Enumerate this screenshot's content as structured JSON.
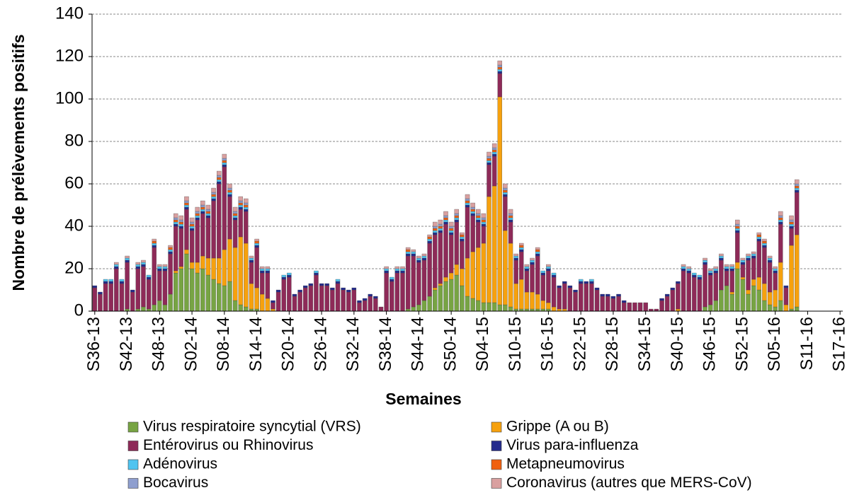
{
  "chart_data": {
    "type": "stacked-bar",
    "ylabel": "Nombre de prélèvements positifs",
    "xlabel": "Semaines",
    "categories": [
      "S36-13",
      null,
      null,
      null,
      null,
      null,
      "S42-13",
      null,
      null,
      null,
      null,
      null,
      "S48-13",
      null,
      null,
      null,
      null,
      null,
      "S02-14",
      null,
      null,
      null,
      null,
      null,
      "S08-14",
      null,
      null,
      null,
      null,
      null,
      "S14-14",
      null,
      null,
      null,
      null,
      null,
      "S20-14",
      null,
      null,
      null,
      null,
      null,
      "S26-14",
      null,
      null,
      null,
      null,
      null,
      "S32-14",
      null,
      null,
      null,
      null,
      null,
      "S38-14",
      null,
      null,
      null,
      null,
      null,
      "S44-14",
      null,
      null,
      null,
      null,
      null,
      "S50-14",
      null,
      null,
      null,
      null,
      null,
      "S04-15",
      null,
      null,
      null,
      null,
      null,
      "S10-15",
      null,
      null,
      null,
      null,
      null,
      "S16-15",
      null,
      null,
      null,
      null,
      null,
      "S22-15",
      null,
      null,
      null,
      null,
      null,
      "S28-15",
      null,
      null,
      null,
      null,
      null,
      "S34-15",
      null,
      null,
      null,
      null,
      null,
      "S40-15",
      null,
      null,
      null,
      null,
      null,
      "S46-15",
      null,
      null,
      null,
      null,
      null,
      "S52-15",
      null,
      null,
      null,
      null,
      null,
      "S05-16",
      null,
      null,
      null,
      null,
      null,
      "S11-16",
      null,
      null,
      null,
      null,
      null,
      "S17-16"
    ],
    "ylim": [
      0,
      140
    ],
    "yticks": [
      0,
      20,
      40,
      60,
      80,
      100,
      120,
      140
    ],
    "grid": true,
    "series": [
      {
        "name": "Virus respiratoire syncytial (VRS)",
        "color": "#77a443",
        "values": [
          0,
          0,
          0,
          0,
          0,
          0,
          1,
          0,
          1,
          2,
          1,
          3,
          5,
          3,
          8,
          18,
          20,
          27,
          20,
          18,
          20,
          17,
          15,
          13,
          12,
          14,
          5,
          3,
          2,
          1,
          1,
          0,
          0,
          0,
          0,
          0,
          0,
          0,
          0,
          0,
          0,
          0,
          0,
          0,
          0,
          0,
          0,
          0,
          0,
          0,
          0,
          0,
          0,
          0,
          0,
          0,
          0,
          0,
          1,
          2,
          3,
          5,
          7,
          10,
          12,
          14,
          15,
          17,
          12,
          7,
          6,
          5,
          4,
          4,
          4,
          3,
          3,
          2,
          1,
          1,
          1,
          1,
          1,
          1,
          1,
          0,
          0,
          0,
          0,
          0,
          0,
          0,
          0,
          0,
          0,
          0,
          0,
          0,
          0,
          0,
          0,
          0,
          0,
          0,
          0,
          0,
          0,
          0,
          0,
          0,
          0,
          0,
          0,
          2,
          3,
          5,
          10,
          12,
          8,
          20,
          15,
          8,
          12,
          10,
          5,
          3,
          2,
          5,
          0,
          1,
          2,
          null,
          null,
          null,
          null,
          null,
          null,
          null,
          null
        ]
      },
      {
        "name": "Grippe (A ou B)",
        "color": "#f6a10e",
        "values": [
          0,
          0,
          0,
          0,
          0,
          0,
          0,
          0,
          0,
          0,
          0,
          0,
          0,
          0,
          0,
          1,
          1,
          2,
          3,
          5,
          6,
          8,
          10,
          12,
          17,
          20,
          25,
          32,
          30,
          12,
          10,
          8,
          6,
          1,
          0,
          0,
          0,
          0,
          0,
          0,
          0,
          0,
          0,
          0,
          0,
          0,
          0,
          0,
          0,
          0,
          0,
          0,
          0,
          0,
          0,
          0,
          0,
          0,
          0,
          0,
          0,
          0,
          0,
          1,
          1,
          2,
          3,
          5,
          8,
          18,
          22,
          25,
          28,
          50,
          55,
          98,
          35,
          30,
          12,
          14,
          8,
          8,
          7,
          4,
          3,
          2,
          1,
          1,
          0,
          0,
          0,
          0,
          0,
          0,
          0,
          0,
          0,
          0,
          0,
          0,
          0,
          0,
          0,
          0,
          0,
          0,
          0,
          0,
          1,
          0,
          0,
          0,
          0,
          0,
          0,
          0,
          0,
          0,
          1,
          3,
          1,
          2,
          3,
          6,
          8,
          6,
          8,
          18,
          3,
          30,
          34,
          null,
          null,
          null,
          null,
          null,
          null,
          null,
          null
        ]
      },
      {
        "name": "Entérovirus ou Rhinovirus",
        "color": "#8e2a58",
        "values": [
          11,
          8,
          13,
          13,
          20,
          13,
          22,
          9,
          19,
          19,
          14,
          27,
          14,
          16,
          19,
          21,
          18,
          19,
          15,
          20,
          20,
          19,
          27,
          35,
          39,
          20,
          13,
          13,
          15,
          10,
          19,
          10,
          12,
          3,
          9,
          15,
          16,
          7,
          9,
          11,
          12,
          17,
          12,
          12,
          10,
          13,
          10,
          9,
          10,
          4,
          5,
          7,
          6,
          2,
          18,
          14,
          18,
          18,
          25,
          24,
          20,
          19,
          25,
          25,
          24,
          25,
          18,
          20,
          13,
          24,
          17,
          12,
          8,
          15,
          14,
          11,
          16,
          10,
          11,
          13,
          10,
          13,
          18,
          12,
          15,
          14,
          10,
          12,
          11,
          9,
          13,
          13,
          13,
          10,
          7,
          7,
          6,
          7,
          4,
          4,
          4,
          4,
          4,
          1,
          1,
          5,
          7,
          10,
          12,
          19,
          18,
          16,
          15,
          20,
          14,
          13,
          14,
          7,
          10,
          14,
          6,
          14,
          10,
          17,
          17,
          14,
          8,
          18,
          8,
          8,
          20,
          null,
          null,
          null,
          null,
          null,
          null,
          null,
          null
        ]
      },
      {
        "name": "Virus para-influenza",
        "color": "#232a8c",
        "values": [
          1,
          1,
          1,
          1,
          1,
          1,
          1,
          1,
          1,
          1,
          1,
          1,
          1,
          1,
          1,
          1,
          1,
          1,
          1,
          1,
          1,
          1,
          1,
          1,
          1,
          1,
          1,
          1,
          1,
          1,
          1,
          1,
          1,
          1,
          1,
          1,
          1,
          1,
          1,
          1,
          1,
          1,
          1,
          1,
          1,
          1,
          1,
          1,
          1,
          1,
          1,
          1,
          1,
          0,
          1,
          1,
          1,
          1,
          1,
          1,
          1,
          1,
          1,
          1,
          1,
          1,
          1,
          1,
          1,
          1,
          1,
          1,
          1,
          1,
          1,
          1,
          1,
          1,
          1,
          1,
          1,
          1,
          1,
          1,
          1,
          1,
          1,
          1,
          1,
          1,
          1,
          1,
          1,
          1,
          1,
          1,
          1,
          1,
          1,
          0,
          0,
          0,
          0,
          0,
          0,
          1,
          1,
          1,
          1,
          1,
          1,
          1,
          1,
          1,
          1,
          1,
          1,
          1,
          1,
          1,
          1,
          1,
          1,
          1,
          1,
          1,
          1,
          1,
          1,
          1,
          1,
          null,
          null,
          null,
          null,
          null,
          null,
          null,
          null
        ]
      },
      {
        "name": "Adénovirus",
        "color": "#4fc4f0",
        "values": [
          0,
          0,
          1,
          1,
          1,
          1,
          1,
          0,
          1,
          1,
          1,
          1,
          1,
          1,
          1,
          1,
          1,
          1,
          1,
          1,
          1,
          1,
          1,
          1,
          1,
          1,
          1,
          1,
          1,
          1,
          1,
          1,
          1,
          0,
          0,
          1,
          1,
          0,
          0,
          0,
          0,
          1,
          0,
          0,
          0,
          1,
          0,
          0,
          0,
          0,
          0,
          0,
          0,
          0,
          1,
          1,
          1,
          1,
          1,
          1,
          1,
          1,
          1,
          1,
          1,
          1,
          1,
          1,
          1,
          1,
          1,
          1,
          1,
          1,
          1,
          1,
          1,
          1,
          1,
          1,
          1,
          1,
          1,
          1,
          1,
          1,
          0,
          0,
          0,
          0,
          1,
          0,
          1,
          0,
          0,
          0,
          0,
          0,
          0,
          0,
          0,
          0,
          0,
          0,
          0,
          0,
          0,
          0,
          0,
          1,
          1,
          1,
          1,
          1,
          1,
          1,
          1,
          1,
          1,
          1,
          1,
          1,
          1,
          1,
          1,
          1,
          1,
          1,
          0,
          1,
          1,
          null,
          null,
          null,
          null,
          null,
          null,
          null,
          null
        ]
      },
      {
        "name": "Metapneumovirus",
        "color": "#f0600f",
        "values": [
          0,
          0,
          0,
          0,
          0,
          0,
          0,
          0,
          0,
          0,
          0,
          1,
          0,
          0,
          1,
          1,
          1,
          1,
          1,
          1,
          1,
          1,
          1,
          1,
          1,
          1,
          1,
          1,
          1,
          0,
          1,
          0,
          0,
          0,
          0,
          0,
          0,
          0,
          0,
          0,
          0,
          0,
          0,
          0,
          0,
          0,
          0,
          0,
          0,
          0,
          0,
          0,
          0,
          0,
          0,
          0,
          0,
          0,
          1,
          0,
          0,
          0,
          1,
          1,
          1,
          1,
          1,
          1,
          1,
          1,
          1,
          1,
          1,
          1,
          1,
          1,
          1,
          1,
          0,
          1,
          0,
          0,
          1,
          0,
          0,
          0,
          0,
          0,
          0,
          0,
          0,
          0,
          0,
          0,
          0,
          0,
          0,
          0,
          0,
          0,
          0,
          0,
          0,
          0,
          0,
          0,
          0,
          0,
          0,
          0,
          0,
          0,
          0,
          0,
          0,
          0,
          0,
          0,
          0,
          1,
          0,
          0,
          0,
          1,
          1,
          0,
          0,
          1,
          0,
          1,
          1,
          null,
          null,
          null,
          null,
          null,
          null,
          null,
          null
        ]
      },
      {
        "name": "Bocavirus",
        "color": "#8f9fcf",
        "values": [
          0,
          0,
          0,
          0,
          0,
          0,
          0,
          0,
          0,
          0,
          0,
          0,
          0,
          0,
          0,
          1,
          1,
          1,
          1,
          1,
          1,
          1,
          1,
          1,
          1,
          1,
          1,
          1,
          1,
          0,
          0,
          0,
          0,
          0,
          0,
          0,
          0,
          0,
          0,
          0,
          0,
          0,
          0,
          0,
          0,
          0,
          0,
          0,
          0,
          0,
          0,
          0,
          0,
          0,
          0,
          0,
          0,
          0,
          0,
          0,
          0,
          0,
          0,
          1,
          1,
          1,
          1,
          1,
          0,
          1,
          1,
          1,
          1,
          1,
          1,
          1,
          1,
          1,
          0,
          0,
          0,
          0,
          0,
          0,
          0,
          0,
          0,
          0,
          0,
          0,
          0,
          0,
          0,
          0,
          0,
          0,
          0,
          0,
          0,
          0,
          0,
          0,
          0,
          0,
          0,
          0,
          0,
          0,
          0,
          0,
          0,
          0,
          0,
          0,
          0,
          0,
          0,
          0,
          0,
          1,
          0,
          0,
          0,
          0,
          0,
          0,
          0,
          1,
          0,
          1,
          1,
          null,
          null,
          null,
          null,
          null,
          null,
          null,
          null
        ]
      },
      {
        "name": "Coronavirus (autres que MERS-CoV)",
        "color": "#d9a0a0",
        "values": [
          0,
          0,
          0,
          0,
          1,
          0,
          1,
          0,
          1,
          1,
          0,
          1,
          1,
          1,
          1,
          2,
          2,
          2,
          2,
          2,
          2,
          2,
          2,
          2,
          2,
          2,
          2,
          2,
          2,
          1,
          1,
          1,
          1,
          0,
          0,
          0,
          0,
          0,
          0,
          0,
          0,
          0,
          0,
          0,
          0,
          0,
          0,
          0,
          0,
          0,
          0,
          0,
          0,
          0,
          1,
          0,
          1,
          1,
          1,
          1,
          1,
          1,
          1,
          2,
          2,
          2,
          2,
          2,
          1,
          2,
          2,
          2,
          2,
          2,
          2,
          2,
          2,
          2,
          1,
          1,
          1,
          1,
          1,
          0,
          1,
          0,
          0,
          0,
          0,
          0,
          0,
          0,
          0,
          0,
          0,
          0,
          0,
          0,
          0,
          0,
          0,
          0,
          0,
          0,
          0,
          0,
          0,
          0,
          0,
          1,
          1,
          0,
          0,
          1,
          1,
          1,
          1,
          1,
          1,
          2,
          1,
          1,
          1,
          1,
          1,
          1,
          1,
          2,
          0,
          2,
          2,
          null,
          null,
          null,
          null,
          null,
          null,
          null,
          null
        ]
      }
    ]
  }
}
